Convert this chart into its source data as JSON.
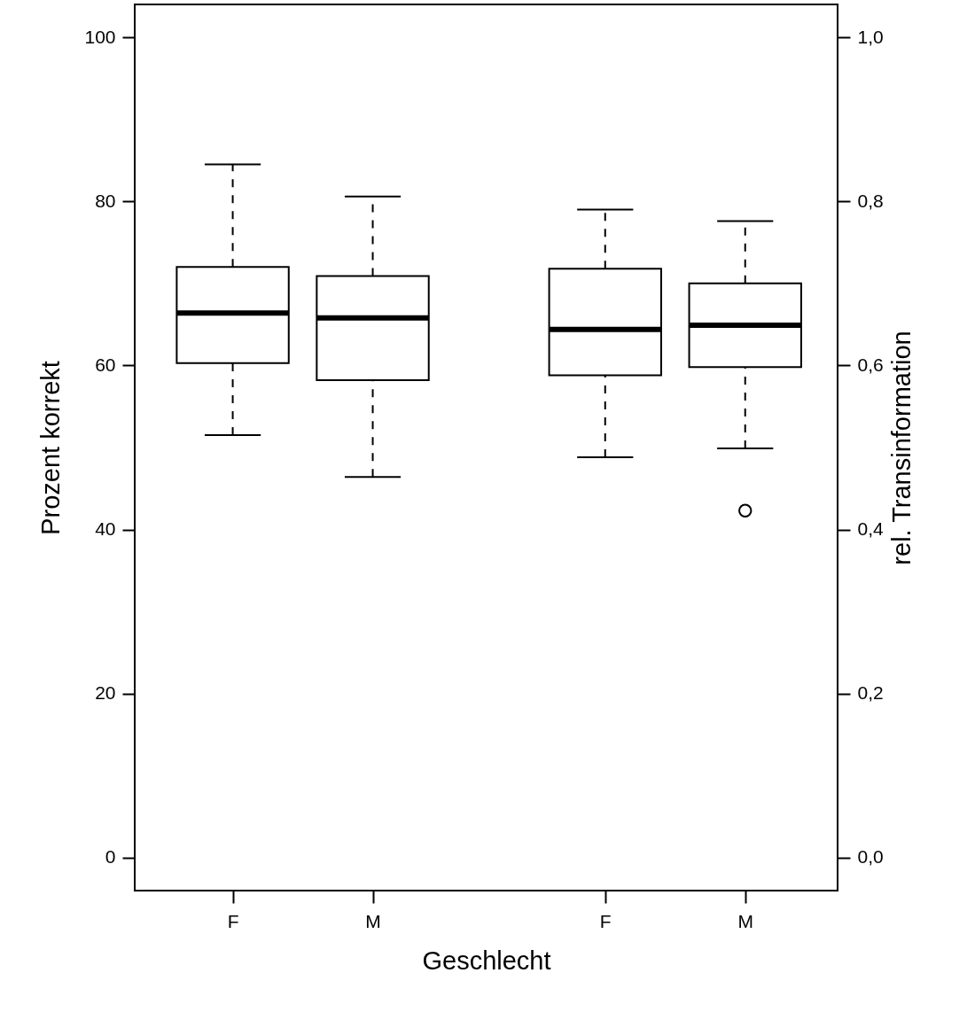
{
  "chart_data": {
    "type": "box",
    "categories": [
      "F",
      "M",
      "F",
      "M"
    ],
    "xlabel": "Geschlecht",
    "ylabel": "Prozent korrekt",
    "y2label": "rel. Transinformation",
    "ylim": [
      -4,
      104
    ],
    "yticks": [
      0,
      20,
      40,
      60,
      80,
      100
    ],
    "y2lim": [
      -0.04,
      1.04
    ],
    "y2ticks": [
      {
        "value": 0,
        "label": "0,0"
      },
      {
        "value": 0.2,
        "label": "0,2"
      },
      {
        "value": 0.4,
        "label": "0,4"
      },
      {
        "value": 0.6,
        "label": "0,6"
      },
      {
        "value": 0.8,
        "label": "0,8"
      },
      {
        "value": 1,
        "label": "1,0"
      }
    ],
    "grid": false,
    "series": [
      {
        "color": "#000000",
        "boxes": [
          {
            "low": 51.5,
            "q1": 60.3,
            "median": 66.4,
            "q3": 72.0,
            "high": 84.5
          },
          {
            "low": 46.4,
            "q1": 58.2,
            "median": 65.8,
            "q3": 70.9,
            "high": 80.6
          },
          null,
          null
        ]
      },
      {
        "axis": "y2",
        "color": "#000000",
        "boxes": [
          null,
          null,
          {
            "low": 0.488,
            "q1": 0.588,
            "median": 0.644,
            "q3": 0.718,
            "high": 0.79
          },
          {
            "low": 0.499,
            "q1": 0.598,
            "median": 0.649,
            "q3": 0.7,
            "high": 0.776,
            "outliers": [
              0.423
            ]
          }
        ]
      }
    ]
  }
}
